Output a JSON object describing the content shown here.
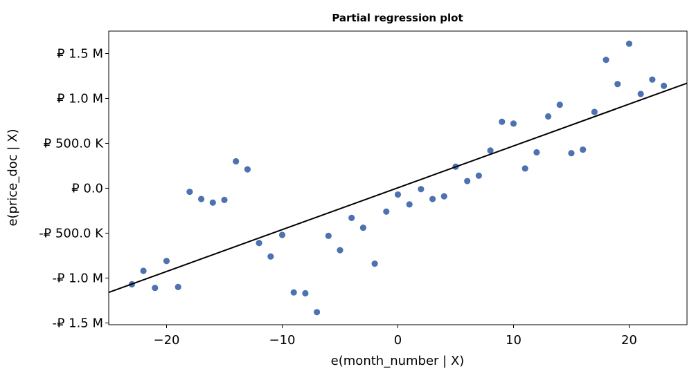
{
  "chart_data": {
    "type": "scatter",
    "title": "Partial regression plot",
    "xlabel": "e(month_number | X)",
    "ylabel": "e(price_doc | X)",
    "xlim": [
      -25,
      25
    ],
    "ylim": [
      -1520000,
      1750000
    ],
    "xticks": [
      {
        "value": -20,
        "label": "−20"
      },
      {
        "value": -10,
        "label": "−10"
      },
      {
        "value": 0,
        "label": "0"
      },
      {
        "value": 10,
        "label": "10"
      },
      {
        "value": 20,
        "label": "20"
      }
    ],
    "yticks": [
      {
        "value": 1500000,
        "label": "₽ 1.5 M"
      },
      {
        "value": 1000000,
        "label": "₽ 1.0 M"
      },
      {
        "value": 500000,
        "label": "₽ 500.0 K"
      },
      {
        "value": 0,
        "label": "₽ 0.0 "
      },
      {
        "value": -500000,
        "label": "-₽ 500.0 K"
      },
      {
        "value": -1000000,
        "label": "-₽ 1.0 M"
      },
      {
        "value": -1500000,
        "label": "-₽ 1.5 M"
      }
    ],
    "grid": false,
    "point_color": "#4c72b0",
    "line_color": "#000000",
    "points": [
      {
        "x": -23,
        "y": -1070000
      },
      {
        "x": -22,
        "y": -920000
      },
      {
        "x": -21,
        "y": -1110000
      },
      {
        "x": -20,
        "y": -810000
      },
      {
        "x": -19,
        "y": -1100000
      },
      {
        "x": -18,
        "y": -40000
      },
      {
        "x": -17,
        "y": -120000
      },
      {
        "x": -16,
        "y": -160000
      },
      {
        "x": -15,
        "y": -130000
      },
      {
        "x": -14,
        "y": 300000
      },
      {
        "x": -13,
        "y": 210000
      },
      {
        "x": -12,
        "y": -610000
      },
      {
        "x": -11,
        "y": -760000
      },
      {
        "x": -10,
        "y": -520000
      },
      {
        "x": -9,
        "y": -1160000
      },
      {
        "x": -8,
        "y": -1170000
      },
      {
        "x": -7,
        "y": -1380000
      },
      {
        "x": -6,
        "y": -530000
      },
      {
        "x": -5,
        "y": -690000
      },
      {
        "x": -4,
        "y": -330000
      },
      {
        "x": -3,
        "y": -440000
      },
      {
        "x": -2,
        "y": -840000
      },
      {
        "x": -1,
        "y": -260000
      },
      {
        "x": 0,
        "y": -70000
      },
      {
        "x": 1,
        "y": -180000
      },
      {
        "x": 2,
        "y": -10000
      },
      {
        "x": 3,
        "y": -120000
      },
      {
        "x": 4,
        "y": -90000
      },
      {
        "x": 5,
        "y": 240000
      },
      {
        "x": 6,
        "y": 80000
      },
      {
        "x": 7,
        "y": 140000
      },
      {
        "x": 8,
        "y": 420000
      },
      {
        "x": 9,
        "y": 740000
      },
      {
        "x": 10,
        "y": 720000
      },
      {
        "x": 11,
        "y": 220000
      },
      {
        "x": 12,
        "y": 400000
      },
      {
        "x": 13,
        "y": 800000
      },
      {
        "x": 14,
        "y": 930000
      },
      {
        "x": 15,
        "y": 390000
      },
      {
        "x": 16,
        "y": 430000
      },
      {
        "x": 17,
        "y": 850000
      },
      {
        "x": 18,
        "y": 1430000
      },
      {
        "x": 19,
        "y": 1160000
      },
      {
        "x": 20,
        "y": 1610000
      },
      {
        "x": 21,
        "y": 1050000
      },
      {
        "x": 22,
        "y": 1210000
      },
      {
        "x": 23,
        "y": 1140000
      }
    ],
    "fit_line": [
      {
        "x": -25,
        "y": -1160000
      },
      {
        "x": 25,
        "y": 1170000
      }
    ]
  }
}
